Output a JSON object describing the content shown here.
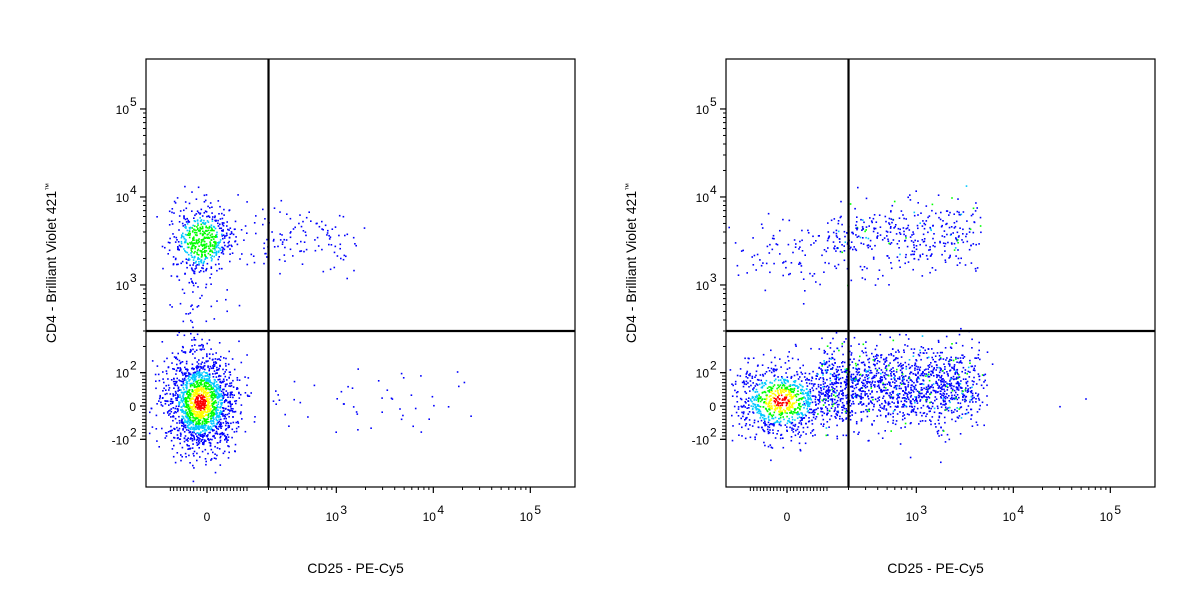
{
  "chart_data": [
    {
      "type": "scatter",
      "subtype": "flow-cytometry-density-dot-plot",
      "xlabel": "CD25 - PE-Cy5",
      "ylabel": "CD4 - Brilliant Violet 421",
      "ylabel_mark": "™",
      "x_scale": "biexponential",
      "y_scale": "biexponential",
      "x_ticks": [
        "0",
        "10^3",
        "10^4",
        "10^5"
      ],
      "y_ticks": [
        "10^5",
        "10^4",
        "10^3",
        "10^2",
        "0",
        "-10^2"
      ],
      "quadrant_gate": {
        "x": 200,
        "y": 300
      },
      "populations": [
        {
          "name": "CD4- CD25-",
          "x_center": 0,
          "y_center": 0,
          "relative_density": "very high"
        },
        {
          "name": "CD4+ CD25-",
          "x_center": 0,
          "y_center": 2200,
          "relative_density": "high"
        },
        {
          "name": "CD4+ CD25+",
          "x_range": [
            200,
            1500
          ],
          "y_range": [
            1000,
            6000
          ],
          "relative_density": "low"
        },
        {
          "name": "CD4- CD25+",
          "x_range": [
            200,
            20000
          ],
          "y_range": [
            -100,
            100
          ],
          "relative_density": "very low"
        }
      ],
      "density_colors": [
        "#0000ff",
        "#00c0ff",
        "#00ff00",
        "#ffff00",
        "#ff0000"
      ]
    },
    {
      "type": "scatter",
      "subtype": "flow-cytometry-density-dot-plot",
      "xlabel": "CD25 - PE-Cy5",
      "ylabel": "CD4 - Brilliant Violet 421",
      "ylabel_mark": "™",
      "x_scale": "biexponential",
      "y_scale": "biexponential",
      "x_ticks": [
        "0",
        "10^3",
        "10^4",
        "10^5"
      ],
      "y_ticks": [
        "10^5",
        "10^4",
        "10^3",
        "10^2",
        "0",
        "-10^2"
      ],
      "quadrant_gate": {
        "x": 200,
        "y": 300
      },
      "populations": [
        {
          "name": "CD4- CD25-",
          "x_center": 0,
          "y_center": 0,
          "relative_density": "high"
        },
        {
          "name": "CD4- CD25+",
          "x_range": [
            200,
            5000
          ],
          "y_range": [
            -100,
            150
          ],
          "relative_density": "high"
        },
        {
          "name": "CD4+ CD25-",
          "x_center": 0,
          "y_center": 1500,
          "relative_density": "low"
        },
        {
          "name": "CD4+ CD25+",
          "x_range": [
            200,
            5000
          ],
          "y_range": [
            1000,
            6000
          ],
          "relative_density": "medium"
        }
      ],
      "density_colors": [
        "#0000ff",
        "#00c0ff",
        "#00ff00",
        "#ffff00",
        "#ff0000"
      ]
    }
  ]
}
